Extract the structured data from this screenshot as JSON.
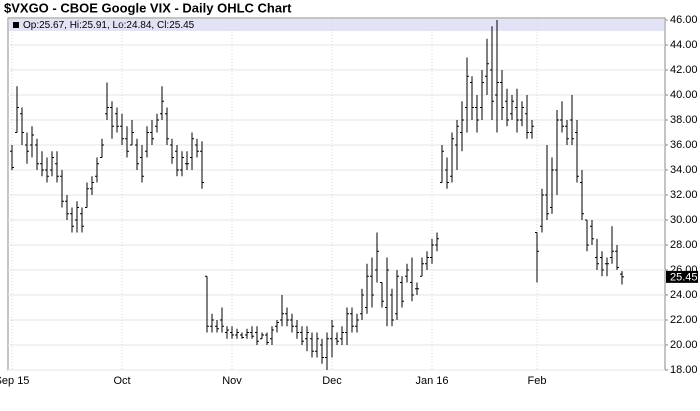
{
  "chart_data": {
    "type": "ohlc",
    "title": "$VXGO - CBOE Google VIX - Daily OHLC Chart",
    "info": "Op:25.67, Hi:25.91, Lo:24.84, Cl:25.45",
    "last_value": 25.45,
    "color": "#000000",
    "grid": true,
    "ylim": [
      18,
      46
    ],
    "yticks": [
      {
        "value": 18,
        "label": "18.00"
      },
      {
        "value": 20,
        "label": "20.00"
      },
      {
        "value": 22,
        "label": "22.00"
      },
      {
        "value": 24,
        "label": "24.00"
      },
      {
        "value": 26,
        "label": "26.00"
      },
      {
        "value": 28,
        "label": "28.00"
      },
      {
        "value": 30,
        "label": "30.00"
      },
      {
        "value": 32,
        "label": "32.00"
      },
      {
        "value": 34,
        "label": "34.00"
      },
      {
        "value": 36,
        "label": "36.00"
      },
      {
        "value": 38,
        "label": "38.00"
      },
      {
        "value": 40,
        "label": "40.00"
      },
      {
        "value": 42,
        "label": "42.00"
      },
      {
        "value": 44,
        "label": "44.00"
      },
      {
        "value": 46,
        "label": "46.00"
      }
    ],
    "categories": [
      "Sep 15",
      null,
      null,
      null,
      null,
      null,
      null,
      null,
      null,
      null,
      null,
      null,
      null,
      null,
      null,
      null,
      null,
      null,
      null,
      null,
      null,
      null,
      "Oct",
      null,
      null,
      null,
      null,
      null,
      null,
      null,
      null,
      null,
      null,
      null,
      null,
      null,
      null,
      null,
      null,
      null,
      null,
      null,
      null,
      null,
      "Nov",
      null,
      null,
      null,
      null,
      null,
      null,
      null,
      null,
      null,
      null,
      null,
      null,
      null,
      null,
      null,
      null,
      null,
      null,
      null,
      "Dec",
      null,
      null,
      null,
      null,
      null,
      null,
      null,
      null,
      null,
      null,
      null,
      null,
      null,
      null,
      null,
      null,
      null,
      null,
      null,
      "Jan 16",
      null,
      null,
      null,
      null,
      null,
      null,
      null,
      null,
      null,
      null,
      null,
      null,
      null,
      null,
      null,
      null,
      null,
      null,
      null,
      null,
      "Feb",
      null,
      null,
      null,
      null,
      null,
      null,
      null,
      null,
      null,
      null,
      null,
      null,
      null,
      null,
      null,
      null,
      null
    ],
    "ohlc": [
      [
        35.5,
        36,
        34,
        34.2
      ],
      [
        37,
        40.7,
        37,
        39
      ],
      [
        38.5,
        39,
        36,
        37
      ],
      [
        36,
        37,
        34.5,
        35.5
      ],
      [
        36,
        37.5,
        35,
        36.8
      ],
      [
        36,
        36.5,
        34,
        34.5
      ],
      [
        34.5,
        35.5,
        33.5,
        34
      ],
      [
        34,
        35,
        33,
        33.5
      ],
      [
        34,
        35.5,
        33.5,
        35
      ],
      [
        34.5,
        35.5,
        33,
        33.5
      ],
      [
        33.5,
        34,
        31,
        31.5
      ],
      [
        31.5,
        32,
        30,
        30.5
      ],
      [
        30.5,
        31,
        29,
        29.5
      ],
      [
        30,
        31.5,
        29,
        31
      ],
      [
        30.5,
        31,
        29,
        29.5
      ],
      [
        31,
        33,
        31,
        32.5
      ],
      [
        32.5,
        33.5,
        32,
        33
      ],
      [
        33.5,
        35,
        33,
        34.5
      ],
      [
        35,
        36.5,
        35,
        36
      ],
      [
        38.5,
        41,
        38,
        39
      ],
      [
        39,
        39.5,
        36.5,
        37.5
      ],
      [
        38.5,
        39,
        37,
        37.5
      ],
      [
        37.5,
        38.5,
        36,
        36.5
      ],
      [
        36.5,
        37.5,
        35,
        35.5
      ],
      [
        36,
        38,
        36,
        37
      ],
      [
        36,
        36.5,
        34,
        34.5
      ],
      [
        35,
        36,
        33,
        33.5
      ],
      [
        35.5,
        37.5,
        35,
        37
      ],
      [
        37,
        38,
        36,
        36.5
      ],
      [
        37.5,
        38.5,
        37,
        38
      ],
      [
        38.5,
        40.7,
        38,
        39.5
      ],
      [
        38.5,
        39,
        36,
        36.5
      ],
      [
        36,
        36.5,
        34.5,
        35
      ],
      [
        35.5,
        36,
        33.5,
        34
      ],
      [
        34,
        35.5,
        33.5,
        35
      ],
      [
        34.5,
        35.5,
        34,
        34.5
      ],
      [
        35,
        37,
        34,
        36.5
      ],
      [
        36,
        36.5,
        35,
        35.5
      ],
      [
        35.5,
        36.3,
        32.5,
        33
      ],
      [
        25.5,
        25.5,
        21,
        21.5
      ],
      [
        21.5,
        22.5,
        21,
        22
      ],
      [
        21.5,
        22,
        21,
        21.3
      ],
      [
        22,
        23,
        21,
        21.5
      ],
      [
        21,
        21.5,
        20.5,
        21.2
      ],
      [
        21,
        21.5,
        20.5,
        20.8
      ],
      [
        20.8,
        21.3,
        20.5,
        21
      ],
      [
        20.8,
        21,
        20.5,
        20.6
      ],
      [
        20.8,
        21.3,
        20.5,
        21
      ],
      [
        21,
        21.5,
        20.5,
        20.7
      ],
      [
        21,
        21.5,
        20,
        20.3
      ],
      [
        20.5,
        21,
        20.5,
        20.8
      ],
      [
        20.8,
        21,
        20,
        20.2
      ],
      [
        20.5,
        21.5,
        20,
        21.2
      ],
      [
        21.5,
        22,
        21,
        21.8
      ],
      [
        22,
        24,
        21.5,
        22.5
      ],
      [
        22.5,
        23,
        21.5,
        22
      ],
      [
        22,
        22.5,
        21,
        21.5
      ],
      [
        21.5,
        22,
        20.5,
        21
      ],
      [
        21,
        21.5,
        20,
        20.3
      ],
      [
        20.5,
        21.5,
        19.5,
        21
      ],
      [
        20.5,
        21,
        19,
        19.5
      ],
      [
        19.5,
        21,
        19,
        20.5
      ],
      [
        20,
        20.5,
        18.5,
        19
      ],
      [
        19,
        21,
        18,
        20.5
      ],
      [
        20.5,
        22,
        19,
        21.5
      ],
      [
        20.5,
        21,
        20,
        20.3
      ],
      [
        20.5,
        21.5,
        20,
        21
      ],
      [
        21,
        23,
        20,
        22.5
      ],
      [
        22.5,
        23,
        21,
        21.5
      ],
      [
        21.5,
        22.5,
        21,
        22
      ],
      [
        22.5,
        24.5,
        22,
        24
      ],
      [
        23,
        26.5,
        22.5,
        25.5
      ],
      [
        25.5,
        27,
        23,
        24
      ],
      [
        26,
        29,
        25,
        27.5
      ],
      [
        25,
        25,
        23,
        23.5
      ],
      [
        23,
        27,
        21.5,
        26
      ],
      [
        24,
        24.5,
        21.5,
        22
      ],
      [
        22.5,
        26,
        22,
        25.5
      ],
      [
        25,
        25.5,
        23,
        23.5
      ],
      [
        25.5,
        26.5,
        25,
        26
      ],
      [
        25,
        27,
        23.5,
        24
      ],
      [
        24.5,
        25,
        24,
        24.5
      ],
      [
        25.5,
        27,
        25.5,
        26.5
      ],
      [
        26.5,
        27.5,
        26,
        27
      ],
      [
        27,
        28.5,
        26.5,
        28
      ],
      [
        28,
        29,
        27.5,
        28.5
      ],
      [
        33,
        36,
        33,
        35.5
      ],
      [
        34,
        35,
        32.5,
        33
      ],
      [
        33.5,
        37,
        33,
        36.5
      ],
      [
        36,
        38,
        34,
        37.5
      ],
      [
        37,
        39.5,
        35.5,
        38
      ],
      [
        39,
        43,
        37,
        41.5
      ],
      [
        41,
        41.5,
        38,
        39
      ],
      [
        39,
        40,
        37,
        38
      ],
      [
        39,
        42,
        38,
        41
      ],
      [
        41.5,
        44.5,
        40,
        42.5
      ],
      [
        42,
        45.5,
        38,
        39.5
      ],
      [
        40,
        46,
        37,
        41
      ],
      [
        41,
        42,
        38,
        39
      ],
      [
        39.5,
        40.5,
        37.5,
        38
      ],
      [
        38.5,
        40,
        38,
        39.5
      ],
      [
        39,
        40.5,
        37,
        38
      ],
      [
        38,
        39.5,
        37.5,
        39
      ],
      [
        38.5,
        40,
        36.5,
        37
      ],
      [
        37,
        38,
        36.5,
        37.5
      ],
      [
        29,
        29,
        25,
        27.5
      ],
      [
        29.5,
        32.5,
        29,
        32
      ],
      [
        32,
        36,
        30,
        30.5
      ],
      [
        31,
        35,
        30.5,
        34
      ],
      [
        34,
        38.8,
        32,
        38
      ],
      [
        38,
        39.5,
        37,
        37.5
      ],
      [
        37.5,
        38,
        36,
        36.5
      ],
      [
        38,
        40,
        36,
        36.5
      ],
      [
        37,
        38,
        33,
        33.5
      ],
      [
        33,
        34,
        30,
        30.5
      ],
      [
        30,
        30,
        27.5,
        28
      ],
      [
        29.5,
        30,
        28,
        28.5
      ],
      [
        27,
        28.5,
        26,
        26.5
      ],
      [
        27,
        27.5,
        25.5,
        26
      ],
      [
        26.5,
        27,
        25.5,
        26.5
      ],
      [
        27,
        29.5,
        26.5,
        27.5
      ],
      [
        27.5,
        28,
        26,
        26.2
      ],
      [
        25.67,
        25.91,
        24.84,
        25.45
      ]
    ]
  }
}
